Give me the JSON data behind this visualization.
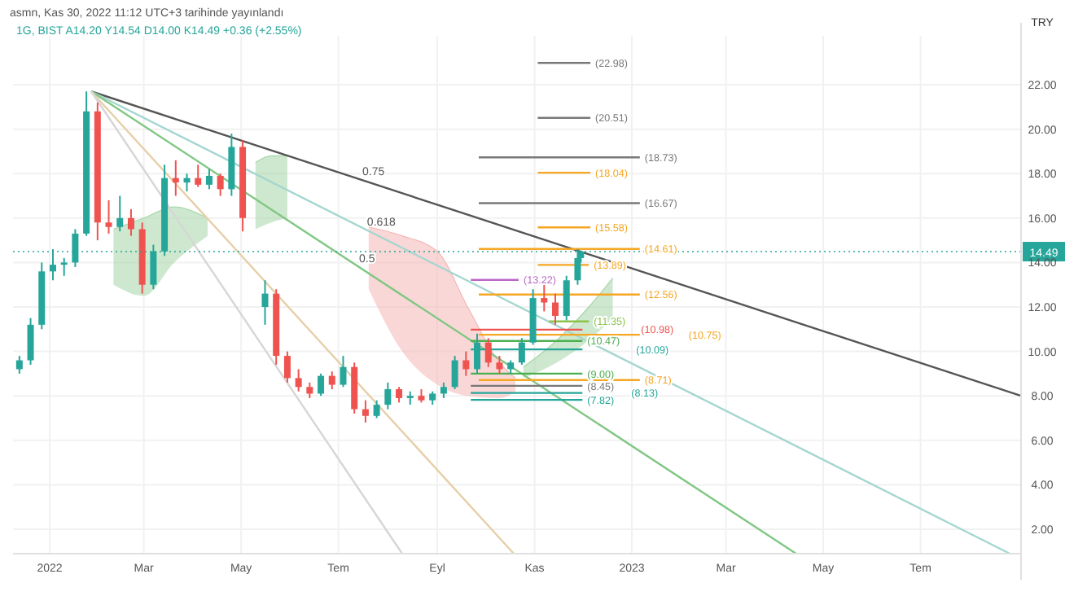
{
  "chart_data": {
    "type": "candlestick",
    "subtitle": "asmn, Kas 30, 2022 11:12 UTC+3 tarihinde yayınlandı",
    "title": "1G, BIST A14.20 Y14.54 D14.00 K14.49 +0.36 (+2.55%)",
    "ylabel": "TRY",
    "xlim": [
      "2021-12-09",
      "2023-09-02"
    ],
    "xticks": [
      {
        "value": "2022-01-01",
        "label": "2022"
      },
      {
        "value": "2022-03-01",
        "label": "Mar"
      },
      {
        "value": "2022-05-01",
        "label": "May"
      },
      {
        "value": "2022-07-01",
        "label": "Tem"
      },
      {
        "value": "2022-09-01",
        "label": "Eyl"
      },
      {
        "value": "2022-11-01",
        "label": "Kas"
      },
      {
        "value": "2023-01-01",
        "label": "2023"
      },
      {
        "value": "2023-03-01",
        "label": "Mar"
      },
      {
        "value": "2023-05-01",
        "label": "May"
      },
      {
        "value": "2023-07-01",
        "label": "Tem"
      }
    ],
    "ylim": [
      0.9,
      24.2
    ],
    "yticks": [
      {
        "value": 2,
        "label": "2.00"
      },
      {
        "value": 4,
        "label": "4.00"
      },
      {
        "value": 6,
        "label": "6.00"
      },
      {
        "value": 8,
        "label": "8.00"
      },
      {
        "value": 10,
        "label": "10.00"
      },
      {
        "value": 12,
        "label": "12.00"
      },
      {
        "value": 14,
        "label": "14.00"
      },
      {
        "value": 16,
        "label": "16.00"
      },
      {
        "value": 18,
        "label": "18.00"
      },
      {
        "value": 20,
        "label": "20.00"
      },
      {
        "value": 22,
        "label": "22.00"
      }
    ],
    "grid": true,
    "ref_lines": [
      {
        "axis": "y",
        "value": 14.49,
        "label": "14.49",
        "color": "#26a69a",
        "line_style": "dotted"
      }
    ],
    "series": [
      {
        "type": "line",
        "color": "#a5d6a7",
        "x": [
          "2022-02-10",
          "2022-03-01",
          "2022-03-20",
          "2022-04-10"
        ],
        "values": [
          15.5,
          16.0,
          16.5,
          16.0
        ],
        "lower": [
          13.0,
          12.5,
          14.0,
          15.2
        ],
        "upper": [
          15.5,
          16.0,
          16.5,
          16.0
        ]
      },
      {
        "type": "line",
        "color": "#a5d6a7",
        "x": [
          "2022-05-10",
          "2022-05-20",
          "2022-05-30"
        ],
        "values": [
          18.5,
          18.8,
          18.8
        ],
        "lower": [
          15.5,
          15.8,
          16.0
        ],
        "upper": [
          18.5,
          18.8,
          18.8
        ]
      },
      {
        "type": "line",
        "color": "#f4b6b4",
        "x": [
          "2022-07-20",
          "2022-08-10",
          "2022-09-01",
          "2022-09-20",
          "2022-10-10",
          "2022-10-20"
        ],
        "values": [
          15.6,
          15.2,
          14.5,
          12.0,
          9.5,
          8.8
        ],
        "lower": [
          12.8,
          10.0,
          8.5,
          8.0,
          7.9,
          8.2
        ],
        "upper": [
          15.6,
          15.2,
          14.5,
          12.0,
          9.5,
          8.8
        ]
      },
      {
        "type": "line",
        "color": "#a5d6a7",
        "x": [
          "2022-10-25",
          "2022-11-15",
          "2022-12-05",
          "2022-12-20"
        ],
        "values": [
          9.3,
          10.5,
          12.0,
          13.3
        ],
        "lower": [
          8.8,
          9.5,
          10.5,
          11.5
        ],
        "upper": [
          9.3,
          10.5,
          12.0,
          13.3
        ]
      },
      {
        "type": "line",
        "color": "#555555",
        "x": [
          "2022-01-27",
          "2023-09-02"
        ],
        "values": [
          21.7,
          8.0
        ]
      },
      {
        "type": "line",
        "color": "#a5d6d0",
        "x": [
          "2022-01-27",
          "2023-08-26"
        ],
        "values": [
          21.7,
          0.9
        ]
      },
      {
        "type": "line",
        "color": "#81c784",
        "x": [
          "2022-01-27",
          "2023-04-14"
        ],
        "values": [
          21.7,
          0.9
        ]
      },
      {
        "type": "line",
        "color": "#e6cfa8",
        "x": [
          "2022-01-27",
          "2022-10-19"
        ],
        "values": [
          21.7,
          0.9
        ]
      },
      {
        "type": "line",
        "color": "#d6d6d6",
        "x": [
          "2022-01-27",
          "2022-08-10"
        ],
        "values": [
          21.7,
          0.9
        ]
      },
      {
        "type": "line",
        "name": "(22.98)",
        "color": "#787878",
        "x": [
          "2022-11-03",
          "2022-12-06"
        ],
        "values": [
          22.98,
          22.98
        ]
      },
      {
        "type": "line",
        "name": "(20.51)",
        "color": "#787878",
        "x": [
          "2022-11-03",
          "2022-12-06"
        ],
        "values": [
          20.51,
          20.51
        ]
      },
      {
        "type": "line",
        "name": "(18.73)",
        "color": "#787878",
        "x": [
          "2022-09-27",
          "2023-01-06"
        ],
        "values": [
          18.73,
          18.73
        ]
      },
      {
        "type": "line",
        "name": "(18.04)",
        "color": "#f5a623",
        "x": [
          "2022-11-03",
          "2022-12-06"
        ],
        "values": [
          18.04,
          18.04
        ]
      },
      {
        "type": "line",
        "name": "(16.67)",
        "color": "#787878",
        "x": [
          "2022-09-27",
          "2023-01-06"
        ],
        "values": [
          16.67,
          16.67
        ]
      },
      {
        "type": "line",
        "name": "(15.58)",
        "color": "#f5a623",
        "x": [
          "2022-11-03",
          "2022-12-06"
        ],
        "values": [
          15.58,
          15.58
        ]
      },
      {
        "type": "line",
        "name": "(14.61)",
        "color": "#f5a623",
        "x": [
          "2022-09-27",
          "2023-01-06"
        ],
        "values": [
          14.61,
          14.61
        ]
      },
      {
        "type": "line",
        "name": "(13.89)",
        "color": "#f5a623",
        "x": [
          "2022-11-03",
          "2022-12-05"
        ],
        "values": [
          13.89,
          13.89
        ]
      },
      {
        "type": "line",
        "name": "(13.22)",
        "color": "#ba68c8",
        "x": [
          "2022-09-22",
          "2022-10-22"
        ],
        "values": [
          13.22,
          13.22
        ]
      },
      {
        "type": "line",
        "name": "(12.56)",
        "color": "#f5a623",
        "x": [
          "2022-09-27",
          "2023-01-06"
        ],
        "values": [
          12.56,
          12.56
        ]
      },
      {
        "type": "line",
        "name": "(11.35)",
        "color": "#8bc34a",
        "x": [
          "2022-11-10",
          "2022-12-05"
        ],
        "values": [
          11.35,
          11.35
        ]
      },
      {
        "type": "line",
        "name": "(10.98)",
        "color": "#ef5350",
        "x": [
          "2022-09-22",
          "2022-12-01"
        ],
        "values": [
          10.98,
          10.98
        ]
      },
      {
        "type": "line",
        "name": "(10.75)",
        "color": "#f5a623",
        "x": [
          "2022-09-27",
          "2023-01-06"
        ],
        "values": [
          10.75,
          10.75
        ]
      },
      {
        "type": "line",
        "name": "(10.47)",
        "color": "#4caf50",
        "x": [
          "2022-09-22",
          "2022-12-01"
        ],
        "values": [
          10.47,
          10.47
        ]
      },
      {
        "type": "line",
        "name": "(10.09)",
        "color": "#26a69a",
        "x": [
          "2022-09-22",
          "2022-12-01"
        ],
        "values": [
          10.09,
          10.09
        ]
      },
      {
        "type": "line",
        "name": "(9.00)",
        "color": "#4caf50",
        "x": [
          "2022-09-22",
          "2022-12-01"
        ],
        "values": [
          9.0,
          9.0
        ]
      },
      {
        "type": "line",
        "name": "(8.71)",
        "color": "#f5a623",
        "x": [
          "2022-09-27",
          "2023-01-06"
        ],
        "values": [
          8.71,
          8.71
        ]
      },
      {
        "type": "line",
        "name": "(8.45)",
        "color": "#787878",
        "x": [
          "2022-09-22",
          "2022-12-01"
        ],
        "values": [
          8.45,
          8.45
        ]
      },
      {
        "type": "line",
        "name": "(8.13)",
        "color": "#26a69a",
        "x": [
          "2022-09-22",
          "2022-12-01"
        ],
        "values": [
          8.13,
          8.13
        ]
      },
      {
        "type": "line",
        "name": "(7.82)",
        "color": "#26a69a",
        "x": [
          "2022-09-22",
          "2022-12-01"
        ],
        "values": [
          7.82,
          7.82
        ]
      },
      {
        "x": [
          "2021-12-13",
          "2021-12-20",
          "2021-12-27",
          "2022-01-03",
          "2022-01-10",
          "2022-01-17",
          "2022-01-24",
          "2022-01-31",
          "2022-02-07",
          "2022-02-14",
          "2022-02-21",
          "2022-02-28",
          "2022-03-07",
          "2022-03-14",
          "2022-03-21",
          "2022-03-28",
          "2022-04-04",
          "2022-04-11",
          "2022-04-18",
          "2022-04-25",
          "2022-05-02",
          "2022-05-16",
          "2022-05-23",
          "2022-05-30",
          "2022-06-06",
          "2022-06-13",
          "2022-06-20",
          "2022-06-27",
          "2022-07-04",
          "2022-07-11",
          "2022-07-18",
          "2022-07-25",
          "2022-08-01",
          "2022-08-08",
          "2022-08-15",
          "2022-08-22",
          "2022-08-29",
          "2022-09-05",
          "2022-09-12",
          "2022-09-19",
          "2022-09-26",
          "2022-10-03",
          "2022-10-10",
          "2022-10-17",
          "2022-10-24",
          "2022-10-31",
          "2022-11-07",
          "2022-11-14",
          "2022-11-21",
          "2022-11-28",
          "2022-11-30"
        ],
        "ohlc": [
          [
            9.2,
            9.8,
            9.0,
            9.6
          ],
          [
            9.6,
            11.5,
            9.4,
            11.2
          ],
          [
            11.2,
            14.0,
            11.0,
            13.6
          ],
          [
            13.6,
            14.6,
            13.2,
            13.9
          ],
          [
            13.9,
            14.2,
            13.4,
            14.0
          ],
          [
            14.0,
            15.5,
            13.8,
            15.3
          ],
          [
            15.3,
            21.7,
            15.2,
            20.8
          ],
          [
            20.8,
            21.2,
            15.0,
            15.8
          ],
          [
            15.8,
            16.8,
            15.3,
            15.6
          ],
          [
            15.6,
            17.0,
            15.4,
            16.0
          ],
          [
            16.0,
            16.4,
            15.2,
            15.5
          ],
          [
            15.5,
            15.8,
            12.6,
            13.0
          ],
          [
            13.0,
            14.8,
            12.8,
            14.5
          ],
          [
            14.5,
            18.4,
            14.3,
            17.8
          ],
          [
            17.8,
            18.6,
            17.0,
            17.6
          ],
          [
            17.6,
            18.0,
            17.2,
            17.8
          ],
          [
            17.8,
            18.4,
            17.4,
            17.5
          ],
          [
            17.5,
            18.2,
            17.3,
            17.9
          ],
          [
            17.9,
            18.0,
            17.0,
            17.3
          ],
          [
            17.3,
            19.8,
            17.0,
            19.2
          ],
          [
            19.2,
            19.5,
            15.4,
            16.0
          ],
          [
            12.0,
            13.2,
            11.2,
            12.6
          ],
          [
            12.6,
            12.8,
            9.4,
            9.8
          ],
          [
            9.8,
            10.0,
            8.6,
            8.8
          ],
          [
            8.8,
            9.2,
            8.2,
            8.4
          ],
          [
            8.4,
            8.6,
            7.9,
            8.1
          ],
          [
            8.1,
            9.0,
            8.0,
            8.9
          ],
          [
            8.9,
            9.1,
            8.3,
            8.5
          ],
          [
            8.5,
            9.8,
            8.4,
            9.3
          ],
          [
            9.3,
            9.5,
            7.2,
            7.4
          ],
          [
            7.4,
            7.8,
            6.8,
            7.1
          ],
          [
            7.1,
            7.8,
            7.0,
            7.6
          ],
          [
            7.6,
            8.6,
            7.4,
            8.3
          ],
          [
            8.3,
            8.4,
            7.7,
            7.9
          ],
          [
            7.9,
            8.2,
            7.6,
            8.0
          ],
          [
            8.0,
            8.3,
            7.7,
            7.8
          ],
          [
            7.8,
            8.2,
            7.6,
            8.1
          ],
          [
            8.1,
            8.6,
            7.9,
            8.4
          ],
          [
            8.4,
            9.8,
            8.3,
            9.6
          ],
          [
            9.6,
            10.0,
            8.9,
            9.2
          ],
          [
            9.2,
            10.8,
            9.0,
            10.4
          ],
          [
            10.4,
            10.6,
            9.3,
            9.5
          ],
          [
            9.5,
            9.8,
            9.0,
            9.2
          ],
          [
            9.2,
            9.6,
            9.0,
            9.5
          ],
          [
            9.5,
            10.6,
            9.4,
            10.4
          ],
          [
            10.4,
            12.8,
            10.3,
            12.4
          ],
          [
            12.4,
            13.2,
            11.8,
            12.2
          ],
          [
            12.2,
            12.6,
            11.2,
            11.6
          ],
          [
            11.6,
            13.4,
            11.4,
            13.2
          ],
          [
            13.2,
            14.6,
            13.0,
            14.2
          ],
          [
            14.2,
            14.54,
            14.0,
            14.49
          ]
        ]
      }
    ],
    "annotations": [
      {
        "text": "0.75",
        "x": "2022-07-16",
        "y": 17.7
      },
      {
        "text": "0.618",
        "x": "2022-07-19",
        "y": 15.45
      },
      {
        "text": "0.5",
        "x": "2022-07-14",
        "y": 13.8
      }
    ]
  }
}
